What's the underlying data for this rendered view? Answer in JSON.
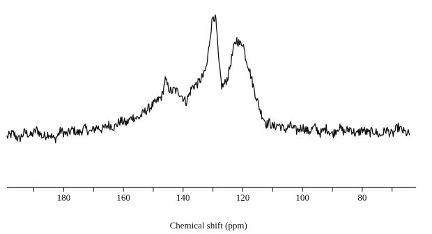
{
  "chart_data": {
    "type": "line",
    "title": "",
    "xlabel": "Chemical shift (ppm)",
    "ylabel": "",
    "x_reversed": true,
    "xlim": [
      199,
      62
    ],
    "ylim": [
      -0.15,
      1.05
    ],
    "x_ticks": [
      180,
      160,
      140,
      120,
      100,
      80
    ],
    "x_tick_labels": [
      "180",
      "160",
      "140",
      "120",
      "100",
      "80"
    ],
    "grid": false,
    "legend": "none",
    "line_color": "#111111",
    "series": [
      {
        "name": "",
        "x": [
          199,
          197,
          195,
          193,
          191,
          189,
          187,
          185,
          183,
          181,
          179,
          177,
          175,
          173,
          171,
          169,
          167,
          165,
          163,
          161,
          159,
          157,
          155,
          153,
          151,
          149,
          147,
          146,
          145,
          144,
          143,
          141,
          139,
          137,
          135,
          133,
          132,
          131,
          130,
          129,
          128,
          127,
          126,
          125,
          124,
          123,
          122,
          121,
          120,
          119,
          118,
          117,
          116,
          115,
          114,
          113,
          112,
          111,
          110,
          108,
          106,
          104,
          102,
          100,
          98,
          96,
          94,
          92,
          90,
          88,
          86,
          84,
          82,
          80,
          78,
          76,
          74,
          72,
          70,
          68,
          66,
          64
        ],
        "y": [
          0.02,
          0.05,
          0.0,
          0.06,
          0.03,
          0.08,
          0.02,
          0.05,
          0.0,
          0.07,
          0.04,
          0.08,
          0.05,
          0.09,
          0.06,
          0.1,
          0.08,
          0.12,
          0.1,
          0.15,
          0.13,
          0.18,
          0.17,
          0.22,
          0.26,
          0.3,
          0.35,
          0.48,
          0.42,
          0.38,
          0.4,
          0.37,
          0.3,
          0.42,
          0.45,
          0.52,
          0.6,
          0.82,
          1.0,
          0.95,
          0.6,
          0.42,
          0.45,
          0.5,
          0.62,
          0.74,
          0.8,
          0.76,
          0.78,
          0.65,
          0.58,
          0.48,
          0.38,
          0.3,
          0.22,
          0.17,
          0.12,
          0.14,
          0.1,
          0.12,
          0.08,
          0.11,
          0.07,
          0.1,
          0.06,
          0.1,
          0.05,
          0.09,
          0.04,
          0.1,
          0.06,
          0.09,
          0.04,
          0.08,
          0.05,
          0.07,
          0.03,
          0.08,
          0.04,
          0.1,
          0.06,
          0.04
        ]
      }
    ]
  }
}
